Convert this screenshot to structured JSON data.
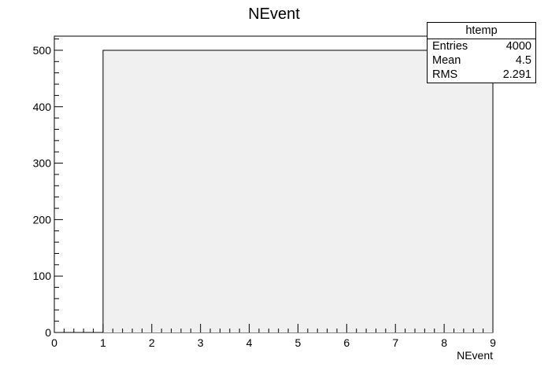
{
  "chart_data": {
    "type": "bar",
    "title": "NEvent",
    "xlabel": "NEvent",
    "ylabel": "",
    "xlim": [
      0,
      9
    ],
    "ylim": [
      0,
      525
    ],
    "x_ticks": [
      0,
      1,
      2,
      3,
      4,
      5,
      6,
      7,
      8,
      9
    ],
    "y_ticks": [
      0,
      100,
      200,
      300,
      400,
      500
    ],
    "bins": [
      {
        "x_low": 1,
        "x_high": 9,
        "value": 500
      }
    ],
    "fill_color": "#f0f0f0",
    "line_color": "#000000",
    "grid": false,
    "legend": "none"
  },
  "stats_box": {
    "title": "htemp",
    "rows": [
      {
        "label": "Entries",
        "value": "4000"
      },
      {
        "label": "Mean",
        "value": "4.5"
      },
      {
        "label": "RMS",
        "value": "2.291"
      }
    ]
  }
}
